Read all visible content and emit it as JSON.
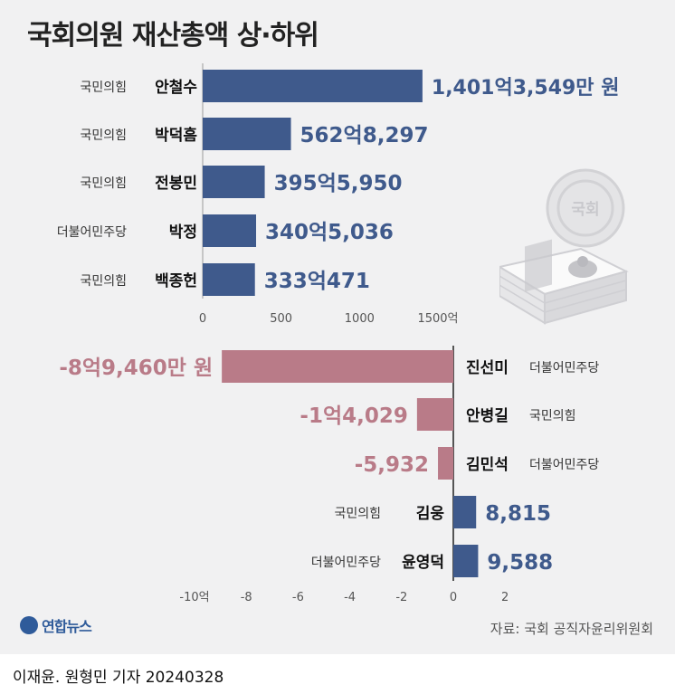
{
  "title": "국회의원 재산총액 상·하위",
  "source": "자료: 국회 공직자윤리위원회",
  "credit": "이재윤. 원형민 기자 20240328",
  "logo": {
    "text": "연합뉴스"
  },
  "emblem_text": "국회",
  "colors": {
    "top_bar": "#3f5a8c",
    "bottom_neg": "#b97b88",
    "bottom_pos": "#3f5a8c",
    "panel_bg": "#f1f1f2",
    "label_top": "#3f5a8c",
    "label_neg": "#b97b88"
  },
  "chart_data": [
    {
      "type": "bar",
      "orientation": "horizontal",
      "name": "top",
      "categories": [
        "안철수",
        "박덕흠",
        "전봉민",
        "박정",
        "백종헌"
      ],
      "parties": [
        "국민의힘",
        "국민의힘",
        "국민의힘",
        "더불어민주당",
        "국민의힘"
      ],
      "values": [
        1401.3549,
        562.8297,
        395.595,
        340.5036,
        333.0471
      ],
      "value_labels": [
        "1,401억3,549만 원",
        "562억8,297",
        "395억5,950",
        "340억5,036",
        "333억471"
      ],
      "xlim": [
        0,
        1500
      ],
      "xticks": [
        0,
        500,
        1000,
        1500
      ],
      "xtick_labels": [
        "0",
        "500",
        "1000",
        "1500억"
      ],
      "unit": "억 원"
    },
    {
      "type": "bar",
      "orientation": "horizontal",
      "name": "bottom",
      "categories": [
        "진선미",
        "안병길",
        "김민석",
        "김웅",
        "윤영덕"
      ],
      "parties": [
        "더불어민주당",
        "국민의힘",
        "더불어민주당",
        "국민의힘",
        "더불어민주당"
      ],
      "values": [
        -8.946,
        -1.4029,
        -0.5932,
        0.8815,
        0.9588
      ],
      "value_labels": [
        "-8억9,460만 원",
        "-1억4,029",
        "-5,932",
        "8,815",
        "9,588"
      ],
      "xlim": [
        -10,
        2
      ],
      "xticks": [
        -10,
        -8,
        -6,
        -4,
        -2,
        0,
        2
      ],
      "xtick_labels": [
        "-10억",
        "-8",
        "-6",
        "-4",
        "-2",
        "0",
        "2"
      ],
      "unit": "억 원"
    }
  ]
}
